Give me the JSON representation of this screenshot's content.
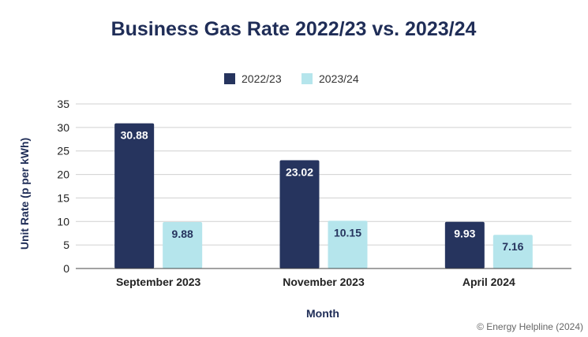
{
  "chart_data": {
    "type": "bar",
    "title": "Business Gas Rate 2022/23 vs. 2023/24",
    "xlabel": "Month",
    "ylabel": "Unit Rate (p per kWh)",
    "categories": [
      "September 2023",
      "November 2023",
      "April 2024"
    ],
    "series": [
      {
        "name": "2022/23",
        "color": "#26345e",
        "label_color": "#ffffff",
        "values": [
          30.88,
          23.02,
          9.93
        ]
      },
      {
        "name": "2023/24",
        "color": "#b5e5ec",
        "label_color": "#26345e",
        "values": [
          9.88,
          10.15,
          7.16
        ]
      }
    ],
    "ylim": [
      0,
      35
    ],
    "yticks": [
      0,
      5,
      10,
      15,
      20,
      25,
      30,
      35
    ],
    "grid": true,
    "legend_position": "top-center"
  },
  "credit": "© Energy Helpline (2024)"
}
